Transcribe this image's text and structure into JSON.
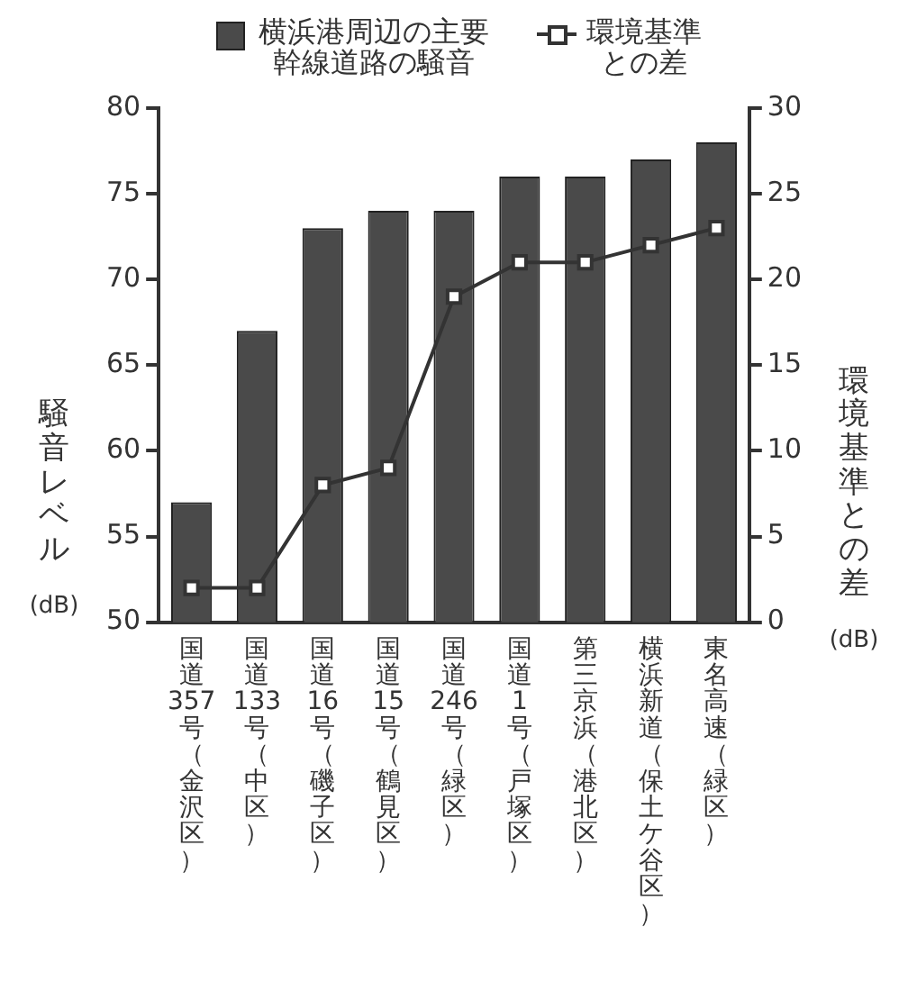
{
  "chart_data": {
    "type": "bar",
    "categories": [
      "国道357号（金沢区）",
      "国道133号（中区）",
      "国道16号（磯子区）",
      "国道15号（鶴見区）",
      "国道246号（緑区）",
      "国道1号（戸塚区）",
      "第三京浜（港北区）",
      "横浜新道（保土ケ谷区）",
      "東名高速（緑区）"
    ],
    "series": [
      {
        "name": "横浜港周辺の主要幹線道路の騒音",
        "color": "#4a4a4a",
        "values": [
          57,
          67,
          73,
          74,
          74,
          76,
          76,
          77,
          78
        ]
      },
      {
        "name": "環境基準との差",
        "type": "line",
        "axis": "y2",
        "color": "#333333",
        "values": [
          2,
          2,
          8,
          9,
          19,
          21,
          21,
          22,
          23
        ]
      }
    ],
    "ylabel": "騒音レベル (dB)",
    "y2label": "環境基準との差 (dB)",
    "ylim": [
      50,
      80
    ],
    "yticks": [
      50,
      55,
      60,
      65,
      70,
      75,
      80
    ],
    "y2lim": [
      0,
      30
    ],
    "y2ticks": [
      0,
      5,
      10,
      15,
      20,
      25,
      30
    ],
    "grid": false,
    "legend": "top",
    "marker": "square",
    "line_style": "solid"
  }
}
